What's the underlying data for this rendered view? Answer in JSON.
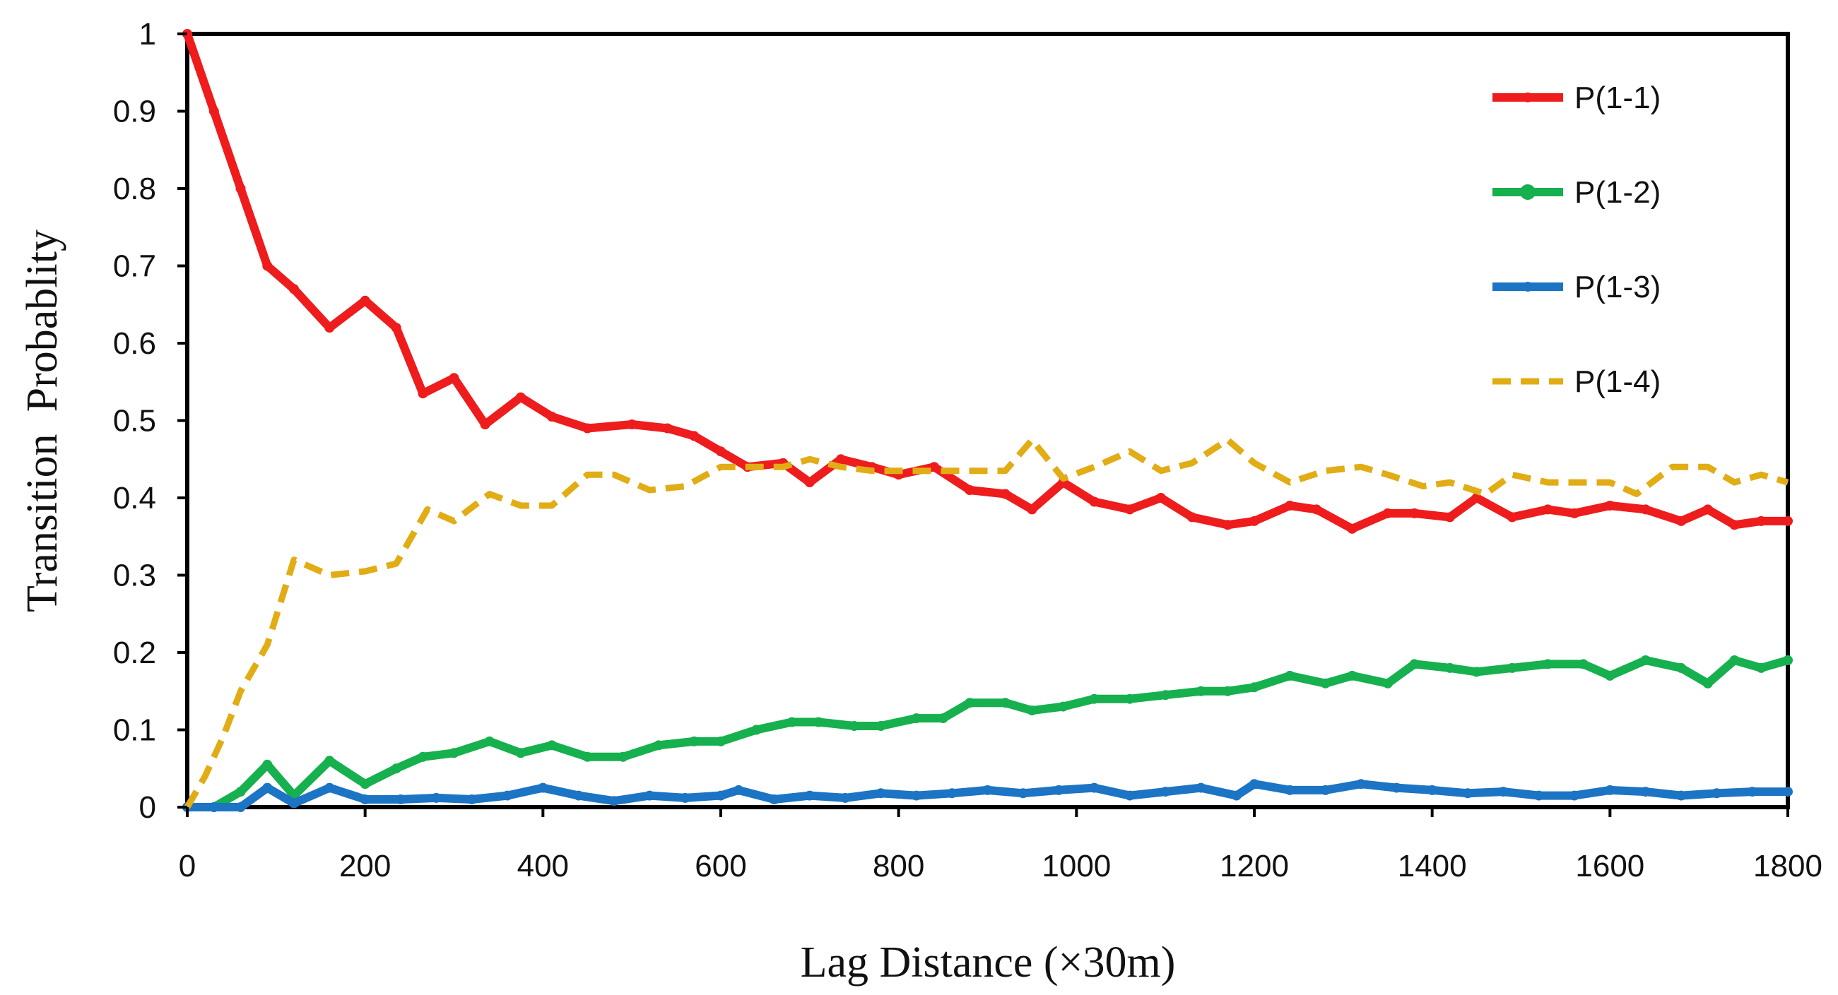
{
  "chart_data": {
    "type": "line",
    "title": "",
    "xlabel": "Lag Distance (×30m)",
    "ylabel": "Transition  Probablity",
    "xlim": [
      0,
      1800
    ],
    "ylim": [
      0,
      1
    ],
    "xticks": [
      0,
      200,
      400,
      600,
      800,
      1000,
      1200,
      1400,
      1600,
      1800
    ],
    "xtick_labels": [
      "0",
      "200",
      "400",
      "600",
      "800",
      "1000",
      "1200",
      "1400",
      "1600",
      "1800"
    ],
    "yticks": [
      0,
      0.1,
      0.2,
      0.3,
      0.4,
      0.5,
      0.6,
      0.7,
      0.8,
      0.9,
      1
    ],
    "ytick_labels": [
      "0",
      "0.1",
      "0.2",
      "0.3",
      "0.4",
      "0.5",
      "0.6",
      "0.7",
      "0.8",
      "0.9",
      "1"
    ],
    "grid": false,
    "legend_position": "top-right",
    "series": [
      {
        "name": "P(1-1)",
        "color": "#ee1c1c",
        "style": "solid",
        "x": [
          0,
          30,
          60,
          90,
          120,
          160,
          200,
          235,
          265,
          300,
          335,
          375,
          410,
          450,
          500,
          540,
          570,
          600,
          630,
          670,
          700,
          735,
          770,
          800,
          840,
          880,
          920,
          950,
          985,
          1020,
          1060,
          1095,
          1130,
          1170,
          1200,
          1240,
          1270,
          1310,
          1350,
          1380,
          1420,
          1450,
          1490,
          1530,
          1560,
          1600,
          1640,
          1680,
          1710,
          1740,
          1770,
          1800
        ],
        "values": [
          1.0,
          0.9,
          0.8,
          0.7,
          0.67,
          0.62,
          0.655,
          0.62,
          0.535,
          0.555,
          0.495,
          0.53,
          0.505,
          0.49,
          0.495,
          0.49,
          0.48,
          0.46,
          0.44,
          0.445,
          0.42,
          0.45,
          0.44,
          0.43,
          0.44,
          0.41,
          0.405,
          0.385,
          0.42,
          0.395,
          0.385,
          0.4,
          0.375,
          0.365,
          0.37,
          0.39,
          0.385,
          0.36,
          0.38,
          0.38,
          0.375,
          0.4,
          0.375,
          0.385,
          0.38,
          0.39,
          0.385,
          0.37,
          0.385,
          0.365,
          0.37,
          0.37
        ]
      },
      {
        "name": "P(1-2)",
        "color": "#16b04e",
        "style": "solid",
        "x": [
          0,
          30,
          60,
          90,
          120,
          160,
          200,
          235,
          265,
          300,
          340,
          375,
          410,
          450,
          490,
          530,
          570,
          600,
          640,
          680,
          710,
          750,
          780,
          820,
          850,
          880,
          920,
          950,
          985,
          1020,
          1060,
          1100,
          1140,
          1170,
          1200,
          1240,
          1280,
          1310,
          1350,
          1380,
          1420,
          1450,
          1490,
          1530,
          1570,
          1600,
          1640,
          1680,
          1710,
          1740,
          1770,
          1800
        ],
        "values": [
          0.0,
          0.0,
          0.02,
          0.055,
          0.015,
          0.06,
          0.03,
          0.05,
          0.065,
          0.07,
          0.085,
          0.07,
          0.08,
          0.065,
          0.065,
          0.08,
          0.085,
          0.085,
          0.1,
          0.11,
          0.11,
          0.105,
          0.105,
          0.115,
          0.115,
          0.135,
          0.135,
          0.125,
          0.13,
          0.14,
          0.14,
          0.145,
          0.15,
          0.15,
          0.155,
          0.17,
          0.16,
          0.17,
          0.16,
          0.185,
          0.18,
          0.175,
          0.18,
          0.185,
          0.185,
          0.17,
          0.19,
          0.18,
          0.16,
          0.19,
          0.18,
          0.19
        ]
      },
      {
        "name": "P(1-3)",
        "color": "#1c74c4",
        "style": "solid",
        "x": [
          0,
          30,
          60,
          90,
          120,
          160,
          200,
          240,
          280,
          320,
          360,
          400,
          440,
          480,
          520,
          560,
          600,
          620,
          660,
          700,
          740,
          780,
          820,
          860,
          900,
          940,
          980,
          1020,
          1060,
          1100,
          1140,
          1180,
          1200,
          1240,
          1280,
          1320,
          1360,
          1400,
          1440,
          1480,
          1520,
          1560,
          1600,
          1640,
          1680,
          1720,
          1760,
          1800
        ],
        "values": [
          0.0,
          0.0,
          0.0,
          0.025,
          0.005,
          0.025,
          0.01,
          0.01,
          0.012,
          0.01,
          0.015,
          0.025,
          0.015,
          0.008,
          0.015,
          0.012,
          0.015,
          0.022,
          0.01,
          0.015,
          0.012,
          0.018,
          0.015,
          0.018,
          0.022,
          0.018,
          0.022,
          0.025,
          0.015,
          0.02,
          0.025,
          0.015,
          0.03,
          0.022,
          0.022,
          0.03,
          0.025,
          0.022,
          0.018,
          0.02,
          0.015,
          0.015,
          0.022,
          0.02,
          0.015,
          0.018,
          0.02,
          0.02
        ]
      },
      {
        "name": "P(1-4)",
        "color": "#e1ac14",
        "style": "dashed",
        "x": [
          0,
          20,
          40,
          60,
          90,
          120,
          160,
          200,
          235,
          270,
          300,
          340,
          375,
          410,
          450,
          480,
          520,
          560,
          600,
          630,
          670,
          700,
          735,
          770,
          800,
          840,
          880,
          920,
          950,
          985,
          1020,
          1060,
          1095,
          1130,
          1170,
          1200,
          1240,
          1280,
          1320,
          1350,
          1390,
          1420,
          1460,
          1490,
          1530,
          1560,
          1600,
          1630,
          1670,
          1710,
          1740,
          1770,
          1800
        ],
        "values": [
          0.0,
          0.04,
          0.09,
          0.15,
          0.21,
          0.32,
          0.3,
          0.305,
          0.315,
          0.385,
          0.37,
          0.405,
          0.39,
          0.39,
          0.43,
          0.43,
          0.41,
          0.415,
          0.44,
          0.44,
          0.44,
          0.45,
          0.44,
          0.435,
          0.435,
          0.435,
          0.435,
          0.435,
          0.475,
          0.425,
          0.44,
          0.46,
          0.435,
          0.445,
          0.475,
          0.445,
          0.42,
          0.435,
          0.44,
          0.43,
          0.415,
          0.42,
          0.405,
          0.43,
          0.42,
          0.42,
          0.42,
          0.405,
          0.44,
          0.44,
          0.42,
          0.43,
          0.42
        ]
      }
    ]
  }
}
